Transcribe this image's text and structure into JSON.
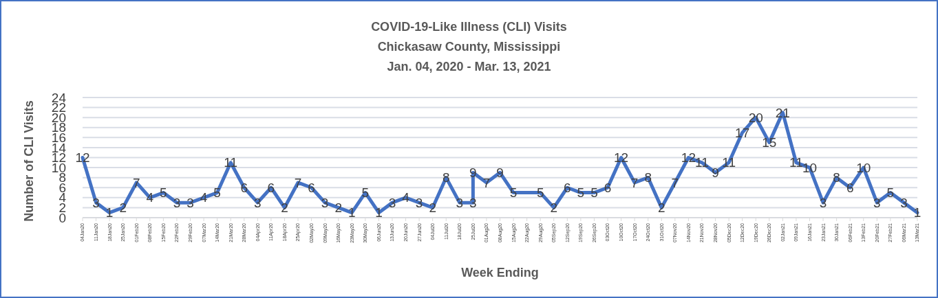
{
  "chart_data": {
    "type": "line",
    "title": "COVID-19-Like Illness (CLI) Visits",
    "subtitle": "Chickasaw County, Mississippi\nJan. 04, 2020 - Mar. 13, 2021",
    "xlabel": "Week Ending",
    "ylabel": "Number of CLI Visits",
    "x": [
      "2020-01-04",
      "2020-01-11",
      "2020-01-18",
      "2020-01-25",
      "2020-02-01",
      "2020-02-08",
      "2020-02-15",
      "2020-02-22",
      "2020-02-29",
      "2020-03-07",
      "2020-03-14",
      "2020-03-21",
      "2020-03-28",
      "2020-04-04",
      "2020-04-11",
      "2020-04-18",
      "2020-04-25",
      "2020-05-02",
      "2020-05-09",
      "2020-05-16",
      "2020-05-23",
      "2020-05-30",
      "2020-06-06",
      "2020-06-13",
      "2020-06-20",
      "2020-06-27",
      "2020-07-04",
      "2020-07-11",
      "2020-07-18",
      "2020-07-25",
      "2020-07-25",
      "2020-08-01",
      "2020-08-08",
      "2020-08-15",
      "2020-08-22",
      "2020-08-29",
      "2020-09-05",
      "2020-09-12",
      "2020-09-19",
      "2020-09-26",
      "2020-10-03",
      "2020-10-10",
      "2020-10-17",
      "2020-10-24",
      "2020-10-31",
      "2020-11-07",
      "2020-11-14",
      "2020-11-21",
      "2020-11-28",
      "2020-12-05",
      "2020-12-12",
      "2020-12-19",
      "2020-12-26",
      "2021-01-02",
      "2021-01-09",
      "2021-01-16",
      "2021-01-23",
      "2021-01-30",
      "2021-02-06",
      "2021-02-13",
      "2021-02-20",
      "2021-02-27",
      "2021-03-06",
      "2021-03-13"
    ],
    "series": [
      {
        "color": "#4472c4",
        "values": [
          12,
          3,
          1,
          2,
          7,
          4,
          5,
          3,
          3,
          4,
          5,
          11,
          6,
          3,
          6,
          2,
          7,
          6,
          3,
          2,
          1,
          5,
          1,
          3,
          4,
          3,
          2,
          8,
          3,
          3,
          9,
          7,
          9,
          5,
          5,
          5,
          2,
          6,
          5,
          5,
          6,
          12,
          7,
          8,
          2,
          7,
          12,
          11,
          9,
          11,
          17,
          20,
          15,
          21,
          11,
          10,
          3,
          8,
          6,
          10,
          3,
          5,
          3,
          1
        ],
        "value_labels": [
          "12",
          "3",
          "1",
          "2",
          "7",
          "4",
          "5",
          "3",
          "3",
          "4",
          "5",
          "11",
          "6",
          "3",
          "6",
          "2",
          "7",
          "6",
          "3",
          "2",
          "1",
          "5",
          "1",
          "3",
          "4",
          "3",
          "2",
          "8",
          "3",
          "3",
          "9",
          "7",
          "9",
          "5",
          null,
          "5",
          "2",
          "6",
          "5",
          "5",
          "6",
          "12",
          "7",
          "8",
          "2",
          "7",
          "12",
          "11",
          "9",
          "11",
          "17",
          "20",
          "15",
          "21",
          "11",
          "10",
          "3",
          "8",
          "6",
          "10",
          "3",
          "5",
          "3",
          "1"
        ]
      }
    ],
    "xlim": [
      "2020-01-04",
      "2021-03-13"
    ],
    "xticks": [
      {
        "value": "2020-01-04",
        "label": "04Jan20"
      },
      {
        "value": "2020-01-11",
        "label": "11Jan20"
      },
      {
        "value": "2020-01-18",
        "label": "18Jan20"
      },
      {
        "value": "2020-01-25",
        "label": "25Jan20"
      },
      {
        "value": "2020-02-01",
        "label": "01Feb20"
      },
      {
        "value": "2020-02-08",
        "label": "08Feb20"
      },
      {
        "value": "2020-02-15",
        "label": "15Feb20"
      },
      {
        "value": "2020-02-22",
        "label": "22Feb20"
      },
      {
        "value": "2020-02-29",
        "label": "29Feb20"
      },
      {
        "value": "2020-03-07",
        "label": "07Mar20"
      },
      {
        "value": "2020-03-14",
        "label": "14Mar20"
      },
      {
        "value": "2020-03-21",
        "label": "21Mar20"
      },
      {
        "value": "2020-03-28",
        "label": "28Mar20"
      },
      {
        "value": "2020-04-04",
        "label": "04Apr20"
      },
      {
        "value": "2020-04-11",
        "label": "11Apr20"
      },
      {
        "value": "2020-04-18",
        "label": "18Apr20"
      },
      {
        "value": "2020-04-25",
        "label": "25Apr20"
      },
      {
        "value": "2020-05-02",
        "label": "02May20"
      },
      {
        "value": "2020-05-09",
        "label": "09May20"
      },
      {
        "value": "2020-05-16",
        "label": "16May20"
      },
      {
        "value": "2020-05-23",
        "label": "23May20"
      },
      {
        "value": "2020-05-30",
        "label": "30May20"
      },
      {
        "value": "2020-06-06",
        "label": "06Jun20"
      },
      {
        "value": "2020-06-13",
        "label": "13Jun20"
      },
      {
        "value": "2020-06-20",
        "label": "20Jun20"
      },
      {
        "value": "2020-06-27",
        "label": "27Jun20"
      },
      {
        "value": "2020-07-04",
        "label": "04Jul20"
      },
      {
        "value": "2020-07-11",
        "label": "11Jul20"
      },
      {
        "value": "2020-07-18",
        "label": "18Jul20"
      },
      {
        "value": "2020-07-25",
        "label": "25Jul20"
      },
      {
        "value": "2020-08-01",
        "label": "01Aug20"
      },
      {
        "value": "2020-08-08",
        "label": "08Aug20"
      },
      {
        "value": "2020-08-15",
        "label": "15Aug20"
      },
      {
        "value": "2020-08-22",
        "label": "22Aug20"
      },
      {
        "value": "2020-08-29",
        "label": "29Aug20"
      },
      {
        "value": "2020-09-05",
        "label": "05Sep20"
      },
      {
        "value": "2020-09-12",
        "label": "12Sep20"
      },
      {
        "value": "2020-09-19",
        "label": "19Sep20"
      },
      {
        "value": "2020-09-26",
        "label": "26Sep20"
      },
      {
        "value": "2020-10-03",
        "label": "03Oct20"
      },
      {
        "value": "2020-10-10",
        "label": "10Oct20"
      },
      {
        "value": "2020-10-17",
        "label": "17Oct20"
      },
      {
        "value": "2020-10-24",
        "label": "24Oct20"
      },
      {
        "value": "2020-10-31",
        "label": "31Oct20"
      },
      {
        "value": "2020-11-07",
        "label": "07Nov20"
      },
      {
        "value": "2020-11-14",
        "label": "14Nov20"
      },
      {
        "value": "2020-11-21",
        "label": "21Nov20"
      },
      {
        "value": "2020-11-28",
        "label": "28Nov20"
      },
      {
        "value": "2020-12-05",
        "label": "05Dec20"
      },
      {
        "value": "2020-12-12",
        "label": "12Dec20"
      },
      {
        "value": "2020-12-19",
        "label": "19Dec20"
      },
      {
        "value": "2020-12-26",
        "label": "26Dec20"
      },
      {
        "value": "2021-01-02",
        "label": "02Jan21"
      },
      {
        "value": "2021-01-09",
        "label": "09Jan21"
      },
      {
        "value": "2021-01-16",
        "label": "16Jan21"
      },
      {
        "value": "2021-01-23",
        "label": "23Jan21"
      },
      {
        "value": "2021-01-30",
        "label": "30Jan21"
      },
      {
        "value": "2021-02-06",
        "label": "06Feb21"
      },
      {
        "value": "2021-02-13",
        "label": "13Feb21"
      },
      {
        "value": "2021-02-20",
        "label": "20Feb21"
      },
      {
        "value": "2021-02-27",
        "label": "27Feb21"
      },
      {
        "value": "2021-03-06",
        "label": "06Mar21"
      },
      {
        "value": "2021-03-13",
        "label": "13Mar21"
      }
    ],
    "ylim": [
      0,
      24
    ],
    "yticks": [
      0,
      2,
      4,
      6,
      8,
      10,
      12,
      14,
      16,
      18,
      20,
      22,
      24
    ],
    "grid": "y",
    "marker": "none",
    "line_style": "solid"
  }
}
